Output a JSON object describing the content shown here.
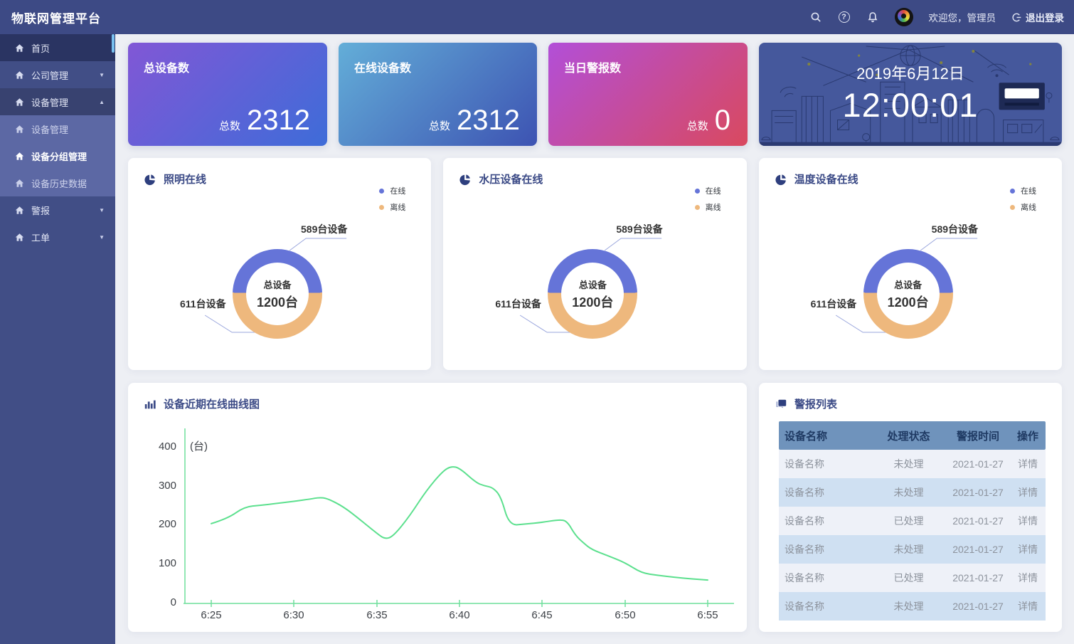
{
  "header": {
    "title": "物联网管理平台",
    "welcome": "欢迎您，管理员",
    "logout_label": "退出登录",
    "help_glyph": "?"
  },
  "sidebar": {
    "items": [
      {
        "label": "首页",
        "arrow": ""
      },
      {
        "label": "公司管理",
        "arrow": "▼"
      },
      {
        "label": "设备管理",
        "arrow": "▲"
      },
      {
        "label": "设备管理",
        "arrow": ""
      },
      {
        "label": "设备分组管理",
        "arrow": ""
      },
      {
        "label": "设备历史数据",
        "arrow": ""
      },
      {
        "label": "警报",
        "arrow": "▼"
      },
      {
        "label": "工单",
        "arrow": "▼"
      }
    ]
  },
  "stats": [
    {
      "title": "总设备数",
      "prefix": "总数",
      "value": "2312",
      "gradient": [
        "#8157d6",
        "#3e6cd8"
      ]
    },
    {
      "title": "在线设备数",
      "prefix": "总数",
      "value": "2312",
      "gradient": [
        "#63aed8",
        "#3d53b2"
      ]
    },
    {
      "title": "当日警报数",
      "prefix": "总数",
      "value": "0",
      "gradient": [
        "#b24fd8",
        "#d9495f"
      ]
    }
  ],
  "clock": {
    "date": "2019年6月12日",
    "time": "12:00:01"
  },
  "chart_data": [
    {
      "type": "pie",
      "title": "照明在线",
      "labels": [
        "在线",
        "离线"
      ],
      "values": [
        589,
        611
      ],
      "callouts": [
        "589台设备",
        "611台设备"
      ],
      "center_label": "总设备",
      "center_value": "1200台",
      "colors": [
        "#6574d8",
        "#eeb87d"
      ]
    },
    {
      "type": "pie",
      "title": "水压设备在线",
      "labels": [
        "在线",
        "离线"
      ],
      "values": [
        589,
        611
      ],
      "callouts": [
        "589台设备",
        "611台设备"
      ],
      "center_label": "总设备",
      "center_value": "1200台",
      "colors": [
        "#6574d8",
        "#eeb87d"
      ]
    },
    {
      "type": "pie",
      "title": "温度设备在线",
      "labels": [
        "在线",
        "离线"
      ],
      "values": [
        589,
        611
      ],
      "callouts": [
        "589台设备",
        "611台设备"
      ],
      "center_label": "总设备",
      "center_value": "1200台",
      "colors": [
        "#6574d8",
        "#eeb87d"
      ]
    },
    {
      "type": "line",
      "title": "设备近期在线曲线图",
      "unit": "(台)",
      "color": "#5ce08e",
      "axis_color": "#6fdf9c",
      "ylim": [
        0,
        400
      ],
      "yticks": [
        "400",
        "300",
        "200",
        "100",
        "0"
      ],
      "xticks": [
        "6:25",
        "6:30",
        "6:35",
        "6:40",
        "6:45",
        "6:50",
        "6:55"
      ],
      "x": [
        0,
        1,
        2,
        3,
        4,
        5,
        6,
        6.5,
        7,
        8,
        9,
        10,
        10.5,
        11,
        12,
        13,
        14,
        14.5,
        15,
        16,
        16.5,
        17,
        17.5,
        18,
        19,
        20,
        21,
        21.5,
        22,
        22.5,
        23,
        24,
        25,
        26,
        27,
        28,
        29,
        30
      ],
      "y": [
        205,
        218,
        248,
        252,
        257,
        262,
        268,
        272,
        270,
        248,
        215,
        180,
        165,
        172,
        225,
        290,
        340,
        352,
        348,
        310,
        302,
        298,
        275,
        200,
        204,
        208,
        215,
        212,
        175,
        155,
        138,
        122,
        105,
        78,
        72,
        67,
        63,
        60
      ]
    }
  ],
  "alerts": {
    "title": "警报列表",
    "columns": [
      "设备名称",
      "处理状态",
      "警报时间",
      "操作"
    ],
    "rows": [
      {
        "name": "设备名称",
        "status": "未处理",
        "time": "2021-01-27",
        "action": "详情"
      },
      {
        "name": "设备名称",
        "status": "未处理",
        "time": "2021-01-27",
        "action": "详情"
      },
      {
        "name": "设备名称",
        "status": "已处理",
        "time": "2021-01-27",
        "action": "详情"
      },
      {
        "name": "设备名称",
        "status": "未处理",
        "time": "2021-01-27",
        "action": "详情"
      },
      {
        "name": "设备名称",
        "status": "已处理",
        "time": "2021-01-27",
        "action": "详情"
      },
      {
        "name": "设备名称",
        "status": "未处理",
        "time": "2021-01-27",
        "action": "详情"
      }
    ]
  }
}
